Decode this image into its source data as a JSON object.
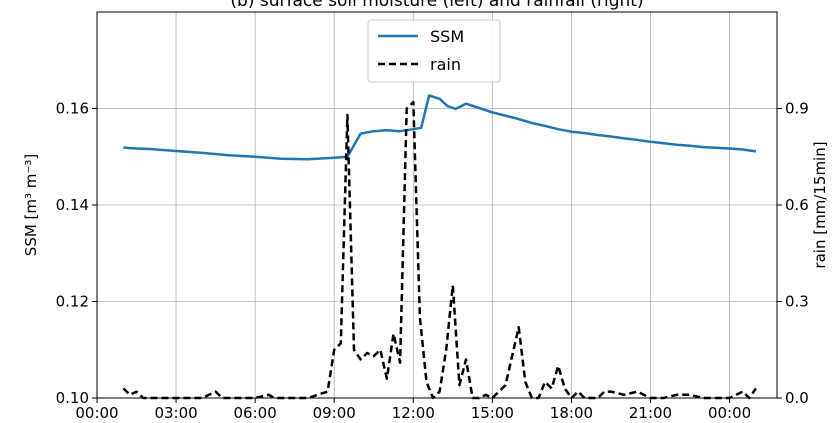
{
  "chart_data": {
    "type": "line",
    "title": "(b) surface soil moisture (left) and rainfall (right)",
    "xlabel": "",
    "ylabel_left": "SSM [m³ m⁻³]",
    "ylabel_right": "rain [mm/15min]",
    "ylim_left": [
      0.1,
      0.18
    ],
    "ylim_right": [
      0.0,
      1.2
    ],
    "xlim_hours": [
      0,
      25.8
    ],
    "x_ticks": [
      {
        "hour": 0,
        "label": "00:00"
      },
      {
        "hour": 3,
        "label": "03:00"
      },
      {
        "hour": 6,
        "label": "06:00"
      },
      {
        "hour": 9,
        "label": "09:00"
      },
      {
        "hour": 12,
        "label": "12:00"
      },
      {
        "hour": 15,
        "label": "15:00"
      },
      {
        "hour": 18,
        "label": "18:00"
      },
      {
        "hour": 21,
        "label": "21:00"
      },
      {
        "hour": 24,
        "label": "00:00"
      }
    ],
    "y_ticks_left": [
      {
        "value": 0.1,
        "label": "0.10"
      },
      {
        "value": 0.12,
        "label": "0.12"
      },
      {
        "value": 0.14,
        "label": "0.14"
      },
      {
        "value": 0.16,
        "label": "0.16"
      }
    ],
    "y_ticks_right": [
      {
        "value": 0.0,
        "label": "0.0"
      },
      {
        "value": 0.3,
        "label": "0.3"
      },
      {
        "value": 0.6,
        "label": "0.6"
      },
      {
        "value": 0.9,
        "label": "0.9"
      }
    ],
    "grid": true,
    "legend_position": "top-center",
    "series": [
      {
        "name": "SSM",
        "axis": "left",
        "color": "#1f77b4",
        "style": "solid",
        "x": [
          1.0,
          1.5,
          2.0,
          3.0,
          4.0,
          5.0,
          6.0,
          7.0,
          8.0,
          9.0,
          9.5,
          10.0,
          10.5,
          11.0,
          11.5,
          12.0,
          12.3,
          12.6,
          13.0,
          13.3,
          13.6,
          14.0,
          14.5,
          15.0,
          15.5,
          16.0,
          16.5,
          17.0,
          17.5,
          18.0,
          18.5,
          19.0,
          19.5,
          20.0,
          20.5,
          21.0,
          22.0,
          22.5,
          23.0,
          24.0,
          24.5,
          25.0
        ],
        "y": [
          0.1519,
          0.1517,
          0.1516,
          0.1512,
          0.1508,
          0.1503,
          0.15,
          0.1496,
          0.1495,
          0.1498,
          0.15,
          0.1548,
          0.1553,
          0.1555,
          0.1553,
          0.1557,
          0.156,
          0.1627,
          0.162,
          0.1605,
          0.1599,
          0.161,
          0.1601,
          0.1592,
          0.1585,
          0.1578,
          0.157,
          0.1564,
          0.1557,
          0.1552,
          0.1549,
          0.1545,
          0.1542,
          0.1538,
          0.1535,
          0.1531,
          0.1525,
          0.1523,
          0.152,
          0.1517,
          0.1515,
          0.1511
        ]
      },
      {
        "name": "rain",
        "axis": "right",
        "color": "#000000",
        "style": "dashed",
        "x": [
          1.0,
          1.25,
          1.5,
          1.75,
          2.0,
          3.0,
          4.0,
          4.5,
          4.75,
          5.0,
          6.0,
          6.5,
          6.75,
          7.0,
          8.0,
          8.75,
          9.0,
          9.25,
          9.5,
          9.75,
          10.0,
          10.25,
          10.5,
          10.75,
          11.0,
          11.25,
          11.5,
          11.75,
          12.0,
          12.25,
          12.5,
          12.75,
          13.0,
          13.25,
          13.5,
          13.75,
          14.0,
          14.25,
          14.5,
          14.75,
          15.0,
          15.5,
          16.0,
          16.25,
          16.5,
          16.75,
          17.0,
          17.25,
          17.5,
          17.75,
          18.0,
          18.25,
          18.5,
          19.0,
          19.25,
          19.5,
          20.0,
          20.5,
          21.0,
          21.5,
          22.0,
          22.5,
          23.0,
          23.5,
          24.0,
          24.5,
          24.75,
          25.0
        ],
        "y": [
          0.03,
          0.01,
          0.02,
          0.0,
          0.0,
          0.0,
          0.0,
          0.02,
          0.0,
          0.0,
          0.0,
          0.01,
          0.0,
          0.0,
          0.0,
          0.02,
          0.15,
          0.17,
          0.88,
          0.15,
          0.12,
          0.14,
          0.13,
          0.15,
          0.06,
          0.2,
          0.11,
          0.9,
          0.92,
          0.25,
          0.05,
          0.0,
          0.02,
          0.15,
          0.35,
          0.04,
          0.12,
          0.0,
          0.0,
          0.01,
          0.0,
          0.04,
          0.22,
          0.05,
          0.0,
          0.0,
          0.05,
          0.03,
          0.1,
          0.03,
          0.0,
          0.02,
          0.0,
          0.0,
          0.02,
          0.02,
          0.01,
          0.02,
          0.0,
          0.0,
          0.01,
          0.01,
          0.0,
          0.0,
          0.0,
          0.02,
          0.0,
          0.03
        ]
      }
    ]
  }
}
